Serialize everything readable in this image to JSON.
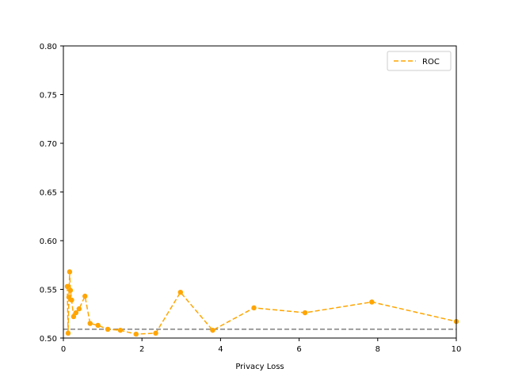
{
  "chart_data": {
    "type": "line",
    "title": "",
    "xlabel": "Privacy Loss",
    "ylabel": "",
    "xlim": [
      0,
      10
    ],
    "ylim": [
      0.5,
      0.8
    ],
    "x_ticks": [
      "0",
      "2",
      "4",
      "6",
      "8",
      "10"
    ],
    "y_ticks": [
      "0.50",
      "0.55",
      "0.60",
      "0.65",
      "0.70",
      "0.75",
      "0.80"
    ],
    "grid": false,
    "legend_position": "top-right",
    "series": [
      {
        "name": "ROC",
        "color": "#FFA500",
        "style": "dashed",
        "marker": "circle",
        "x": [
          0.1,
          0.12,
          0.14,
          0.16,
          0.18,
          0.21,
          0.26,
          0.32,
          0.4,
          0.55,
          0.68,
          0.88,
          1.13,
          1.45,
          1.85,
          2.35,
          2.98,
          3.8,
          4.85,
          6.15,
          7.85,
          10.0
        ],
        "y": [
          0.553,
          0.505,
          0.542,
          0.568,
          0.549,
          0.539,
          0.522,
          0.526,
          0.53,
          0.543,
          0.515,
          0.513,
          0.509,
          0.508,
          0.504,
          0.505,
          0.547,
          0.508,
          0.531,
          0.526,
          0.537,
          0.517
        ]
      }
    ],
    "reference_line": {
      "y": 0.509,
      "color": "#808080",
      "style": "dashed"
    }
  }
}
